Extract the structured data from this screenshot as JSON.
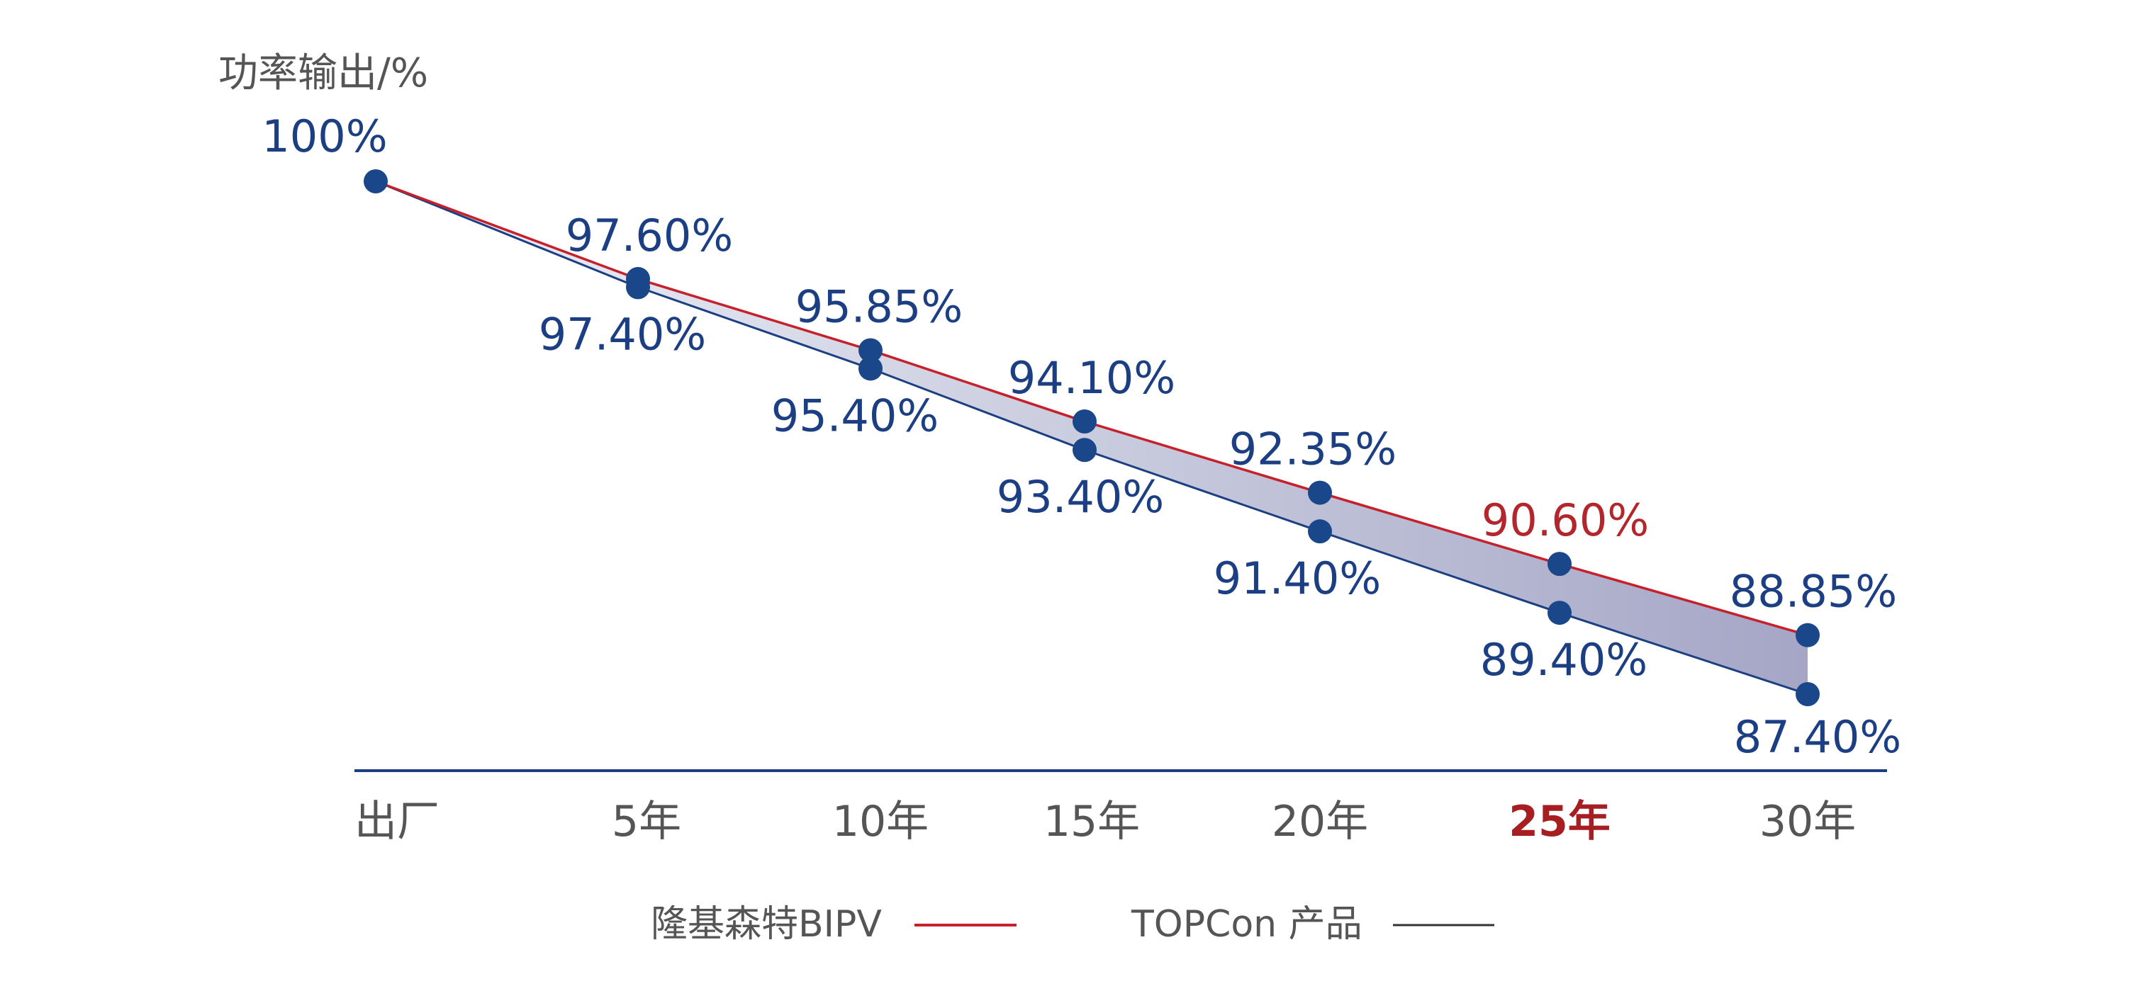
{
  "chart_data": {
    "type": "line",
    "ylabel": "功率输出/%",
    "categories": [
      "出厂",
      "5年",
      "10年",
      "15年",
      "20年",
      "25年",
      "30年"
    ],
    "highlight_category": "25年",
    "series": [
      {
        "name": "隆基森特BIPV",
        "values": [
          100,
          97.6,
          95.85,
          94.1,
          92.35,
          90.6,
          88.85
        ],
        "labels": [
          "100%",
          "97.60%",
          "95.85%",
          "94.10%",
          "92.35%",
          "90.60%",
          "88.85%"
        ],
        "highlight_index": 5,
        "color": "#c8202a"
      },
      {
        "name": "TOPCon 产品",
        "values": [
          100,
          97.4,
          95.4,
          93.4,
          91.4,
          89.4,
          87.4
        ],
        "labels": [
          "",
          "97.40%",
          "95.40%",
          "93.40%",
          "91.40%",
          "89.40%",
          "87.40%"
        ],
        "color": "#1b3f82"
      }
    ],
    "marker_color": "#1a468a",
    "value_label_color": "#1b3f82",
    "highlight_color": "#b3262b",
    "fill_gradient": [
      "#eef1f7",
      "#a5a6c6"
    ],
    "axis_color": "#1b3f82",
    "legend_position": "bottom-center"
  }
}
